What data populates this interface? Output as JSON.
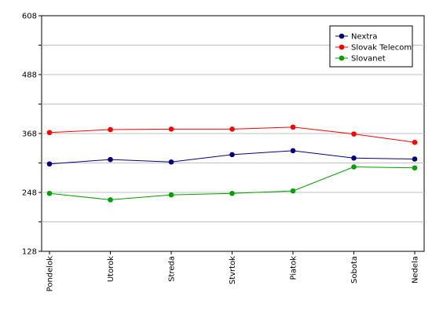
{
  "chart_data": {
    "type": "line",
    "categories": [
      "Pondelok",
      "Utorok",
      "Streda",
      "Stvrtok",
      "Piatok",
      "Sobota",
      "Nedela"
    ],
    "ylim": [
      128,
      608
    ],
    "yticks": [
      128,
      248,
      368,
      488,
      608
    ],
    "grid": true,
    "legend_position": "top-right",
    "series": [
      {
        "name": "Nextra",
        "color": "#000080",
        "values": [
          306,
          315,
          310,
          325,
          333,
          318,
          316
        ]
      },
      {
        "name": "Slovak Telecom",
        "color": "#ff0000",
        "values": [
          370,
          376,
          377,
          377,
          381,
          367,
          350
        ]
      },
      {
        "name": "Slovanet",
        "color": "#00a000",
        "values": [
          246,
          233,
          243,
          246,
          251,
          300,
          298
        ]
      }
    ]
  }
}
